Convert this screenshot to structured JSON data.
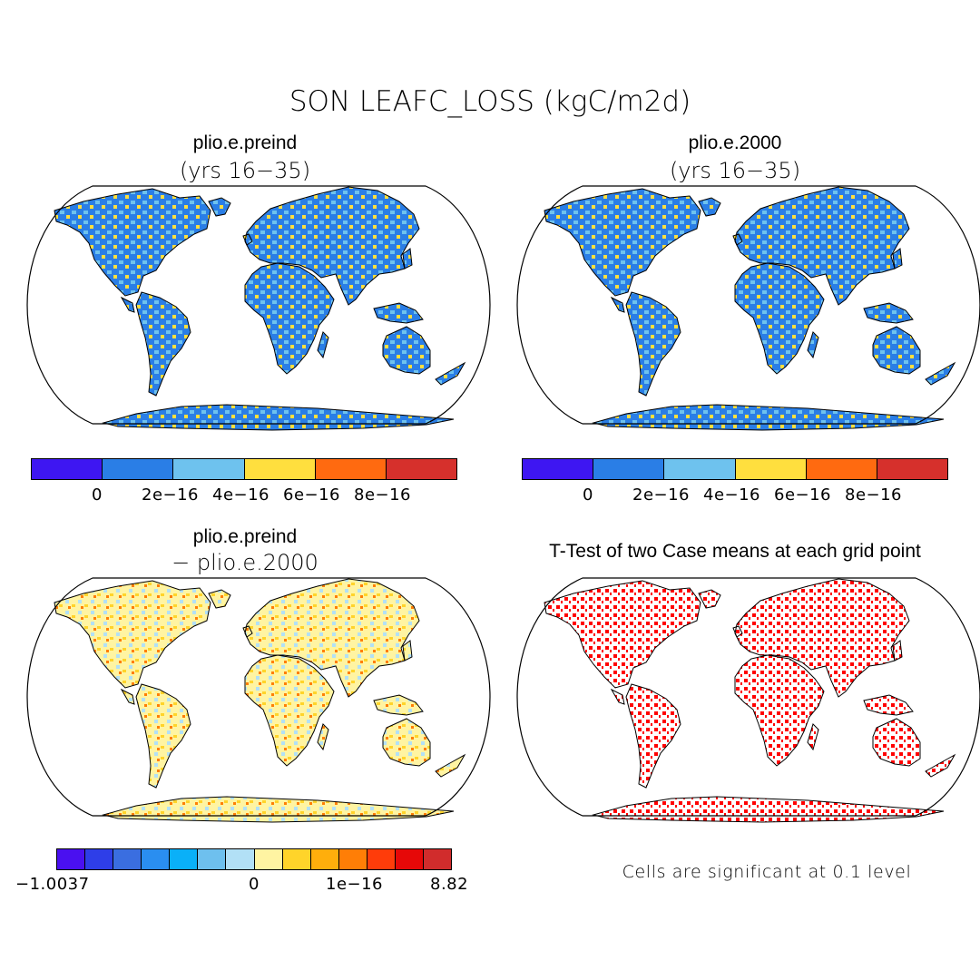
{
  "main_title": "SON LEAFC_LOSS (kgC/m2d)",
  "panels": {
    "top_left": {
      "title": "plio.e.preind",
      "subtitle": "(yrs 16−35)"
    },
    "top_right": {
      "title": "plio.e.2000",
      "subtitle": "(yrs 16−35)"
    },
    "bottom_left": {
      "title": "plio.e.preind",
      "subtitle": "− plio.e.2000"
    },
    "bottom_right": {
      "title": "T-Test of two Case means at each grid point",
      "note": "Cells are significant at 0.1 level"
    }
  },
  "colorbar_top": {
    "colors": [
      "#3e16f2",
      "#2a7ee6",
      "#6ec2ee",
      "#ffdf3e",
      "#ff6a10",
      "#d6302c"
    ],
    "labels": [
      "0",
      "2e−16",
      "4e−16",
      "6e−16",
      "8e−16"
    ]
  },
  "colorbar_diff": {
    "colors": [
      "#4a10f0",
      "#2e3ee8",
      "#3a6ee0",
      "#2a8ef0",
      "#0ab0f8",
      "#6ec0ee",
      "#b2e0f6",
      "#fff4a2",
      "#ffd42a",
      "#ffae0c",
      "#ff7e06",
      "#ff3c0a",
      "#e60808",
      "#d12c2c"
    ],
    "labels": [
      "−1.0037",
      "0",
      "1e−16",
      "8.82"
    ]
  },
  "legend_colors": {
    "land_base": "#2a7ee6",
    "diff_base": "#fff4a2",
    "significance": "#ff0000"
  }
}
